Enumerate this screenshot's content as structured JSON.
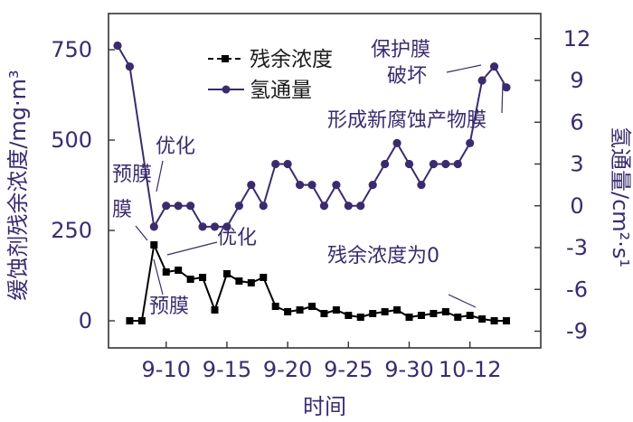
{
  "chart_data": {
    "type": "line",
    "xlabel": "时间",
    "ylabel_left": "缓蚀剂残余浓度/mg·m³",
    "ylabel_right": "氢通量/cm²·s¹",
    "x_tick_labels": [
      "9-10",
      "9-15",
      "9-20",
      "9-25",
      "9-30",
      "10-12"
    ],
    "y_left_ticks": [
      "0",
      "250",
      "500",
      "750"
    ],
    "y_right_ticks": [
      "-9",
      "-6",
      "-3",
      "0",
      "3",
      "6",
      "9",
      "12"
    ],
    "ylim_left": [
      -75,
      850
    ],
    "ylim_right": [
      -10.2,
      13.8
    ],
    "colors": {
      "residual": "#000000",
      "hydrogen": "#3b2b6e",
      "axis": "#333333",
      "text": "#3b2b6e"
    },
    "series": [
      {
        "name": "残余浓度",
        "axis": "left",
        "marker": "square",
        "x": [
          1,
          2,
          3,
          4,
          5,
          6,
          7,
          8,
          9,
          10,
          11,
          12,
          13,
          14,
          15,
          16,
          17,
          18,
          19,
          20,
          21,
          22,
          23,
          24,
          25,
          26,
          27,
          28,
          29,
          30,
          31,
          32
        ],
        "values": [
          0,
          0,
          210,
          135,
          140,
          115,
          120,
          30,
          130,
          110,
          105,
          120,
          40,
          25,
          30,
          40,
          20,
          30,
          15,
          10,
          20,
          25,
          30,
          10,
          15,
          20,
          25,
          10,
          15,
          5,
          0,
          0
        ]
      },
      {
        "name": "氢通量",
        "axis": "right",
        "marker": "circle",
        "x": [
          0,
          1,
          3,
          4,
          5,
          6,
          7,
          8,
          9,
          10,
          11,
          12,
          13,
          14,
          15,
          16,
          17,
          18,
          19,
          20,
          21,
          22,
          23,
          24,
          25,
          26,
          27,
          28,
          29,
          30,
          31,
          32
        ],
        "values": [
          11.5,
          10,
          -1.5,
          0,
          0,
          0,
          -1.5,
          -1.5,
          -1.5,
          0,
          1.5,
          0,
          3,
          3,
          1.5,
          1.5,
          0,
          1.5,
          0,
          0,
          1.5,
          3,
          4.5,
          3,
          1.5,
          3,
          3,
          3,
          4.5,
          9,
          10,
          8.5
        ]
      }
    ],
    "legend": {
      "position": "top-center",
      "entries": [
        "残余浓度",
        "氢通量"
      ]
    },
    "annotations": [
      "预膜",
      "优化",
      "优化",
      "预膜",
      "保护膜",
      "破坏",
      "形成新腐蚀产物膜",
      "残余浓度为0"
    ]
  }
}
